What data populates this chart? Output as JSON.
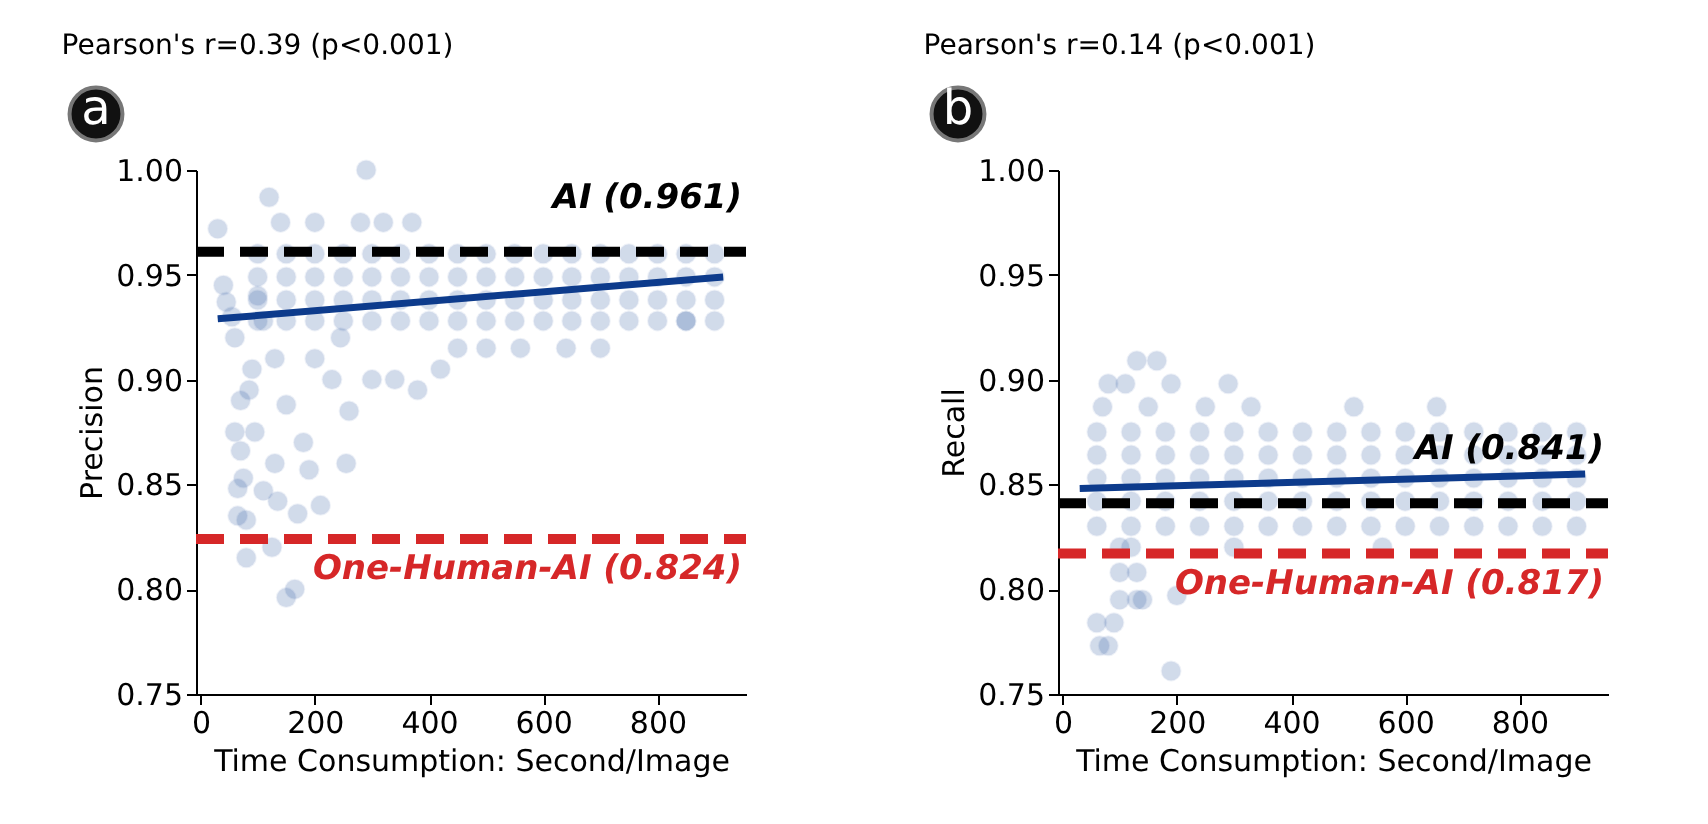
{
  "chart_data": [
    {
      "type": "scatter",
      "title": "Pearson's r=0.39 (p<0.001)",
      "xlabel": "Time Consumption: Second/Image",
      "ylabel": "Precision",
      "annotations": [
        "a"
      ],
      "xlim": [
        -8,
        955
      ],
      "xticks": [
        0,
        200,
        400,
        600,
        800
      ],
      "ylim": [
        0.75,
        1.0
      ],
      "yticks": [
        {
          "value": 0.75,
          "label": "0.75"
        },
        {
          "value": 0.8,
          "label": "0.80"
        },
        {
          "value": 0.85,
          "label": "0.85"
        },
        {
          "value": 0.9,
          "label": "0.90"
        },
        {
          "value": 0.95,
          "label": "0.95"
        },
        {
          "value": 1.0,
          "label": "1.00"
        }
      ],
      "grid": false,
      "marker": "circle",
      "ref_lines": [
        {
          "axis": "y",
          "value": 0.961,
          "label": "AI (0.961)",
          "color": "#000000",
          "line_style": "dashed"
        },
        {
          "axis": "y",
          "value": 0.824,
          "label": "One-Human-AI (0.824)",
          "color": "#d62728",
          "line_style": "dashed"
        }
      ],
      "series": [
        {
          "color": "#1f4e9c",
          "x": [
            30,
            40,
            45,
            55,
            60,
            60,
            65,
            65,
            70,
            70,
            75,
            80,
            80,
            85,
            90,
            95,
            100,
            110,
            110,
            120,
            125,
            130,
            130,
            135,
            140,
            150,
            150,
            165,
            170,
            180,
            190,
            200,
            200,
            210,
            230,
            245,
            255,
            260,
            280,
            290,
            300,
            320,
            340,
            370,
            380,
            420,
            450,
            500,
            560,
            640,
            700,
            850,
            100,
            150,
            200,
            250,
            300,
            350,
            400,
            450,
            500,
            550,
            600,
            650,
            700,
            750,
            800,
            850,
            900,
            100,
            150,
            200,
            250,
            300,
            350,
            400,
            450,
            500,
            550,
            600,
            650,
            700,
            750,
            800,
            850,
            900,
            100,
            150,
            200,
            250,
            300,
            350,
            400,
            450,
            500,
            550,
            600,
            650,
            700,
            750,
            800,
            850,
            900,
            100,
            150,
            200,
            250,
            300,
            350,
            400,
            450,
            500,
            550,
            600,
            650,
            700,
            750,
            800,
            850,
            900
          ],
          "values": [
            0.972,
            0.945,
            0.937,
            0.93,
            0.92,
            0.875,
            0.835,
            0.848,
            0.89,
            0.866,
            0.853,
            0.815,
            0.833,
            0.895,
            0.905,
            0.875,
            0.94,
            0.928,
            0.847,
            0.987,
            0.82,
            0.86,
            0.91,
            0.842,
            0.975,
            0.796,
            0.888,
            0.8,
            0.836,
            0.87,
            0.857,
            0.975,
            0.91,
            0.84,
            0.9,
            0.92,
            0.86,
            0.885,
            0.975,
            1.0,
            0.9,
            0.975,
            0.9,
            0.975,
            0.895,
            0.905,
            0.915,
            0.915,
            0.915,
            0.915,
            0.915,
            0.928,
            0.928,
            0.928,
            0.928,
            0.928,
            0.928,
            0.928,
            0.928,
            0.928,
            0.928,
            0.928,
            0.928,
            0.928,
            0.928,
            0.928,
            0.928,
            0.928,
            0.928,
            0.938,
            0.938,
            0.938,
            0.938,
            0.938,
            0.938,
            0.938,
            0.938,
            0.938,
            0.938,
            0.938,
            0.938,
            0.938,
            0.938,
            0.938,
            0.938,
            0.938,
            0.949,
            0.949,
            0.949,
            0.949,
            0.949,
            0.949,
            0.949,
            0.949,
            0.949,
            0.949,
            0.949,
            0.949,
            0.949,
            0.949,
            0.949,
            0.949,
            0.949,
            0.96,
            0.96,
            0.96,
            0.96,
            0.96,
            0.96,
            0.96,
            0.96,
            0.96,
            0.96,
            0.96,
            0.96,
            0.96,
            0.96,
            0.96,
            0.96,
            0.96
          ]
        },
        {
          "type": "line",
          "marker": "none",
          "color": "#0d3b8c",
          "x": [
            30,
            915
          ],
          "values": [
            0.929,
            0.949
          ]
        }
      ]
    },
    {
      "type": "scatter",
      "title": "Pearson's r=0.14 (p<0.001)",
      "xlabel": "Time Consumption: Second/Image",
      "ylabel": "Recall",
      "annotations": [
        "b"
      ],
      "xlim": [
        -8,
        955
      ],
      "xticks": [
        0,
        200,
        400,
        600,
        800
      ],
      "ylim": [
        0.75,
        1.0
      ],
      "yticks": [
        {
          "value": 0.75,
          "label": "0.75"
        },
        {
          "value": 0.8,
          "label": "0.80"
        },
        {
          "value": 0.85,
          "label": "0.85"
        },
        {
          "value": 0.9,
          "label": "0.90"
        },
        {
          "value": 0.95,
          "label": "0.95"
        },
        {
          "value": 1.0,
          "label": "1.00"
        }
      ],
      "grid": false,
      "marker": "circle",
      "ref_lines": [
        {
          "axis": "y",
          "value": 0.841,
          "label": "AI (0.841)",
          "color": "#000000",
          "line_style": "dashed"
        },
        {
          "axis": "y",
          "value": 0.817,
          "label": "One-Human-AI (0.817)",
          "color": "#d62728",
          "line_style": "dashed"
        }
      ],
      "series": [
        {
          "color": "#1f4e9c",
          "x": [
            60,
            65,
            80,
            90,
            100,
            130,
            140,
            190,
            80,
            110,
            130,
            165,
            190,
            290,
            100,
            130,
            200,
            510,
            655,
            70,
            150,
            250,
            330,
            120,
            300,
            560,
            100,
            60,
            120,
            180,
            240,
            300,
            360,
            420,
            480,
            540,
            600,
            660,
            720,
            780,
            840,
            900,
            60,
            120,
            180,
            240,
            300,
            360,
            420,
            480,
            540,
            600,
            660,
            720,
            780,
            840,
            900,
            60,
            120,
            180,
            240,
            300,
            360,
            420,
            480,
            540,
            600,
            660,
            720,
            780,
            840,
            900,
            60,
            120,
            180,
            240,
            300,
            360,
            420,
            480,
            540,
            600,
            660,
            720,
            780,
            840,
            900,
            60,
            120,
            180,
            240,
            300,
            360,
            420,
            480,
            540,
            600,
            660,
            720,
            780,
            840,
            900
          ],
          "values": [
            0.784,
            0.773,
            0.773,
            0.784,
            0.795,
            0.795,
            0.795,
            0.761,
            0.898,
            0.898,
            0.909,
            0.909,
            0.898,
            0.898,
            0.808,
            0.808,
            0.797,
            0.887,
            0.887,
            0.887,
            0.887,
            0.887,
            0.887,
            0.82,
            0.82,
            0.82,
            0.82,
            0.83,
            0.83,
            0.83,
            0.83,
            0.83,
            0.83,
            0.83,
            0.83,
            0.83,
            0.83,
            0.83,
            0.83,
            0.83,
            0.83,
            0.83,
            0.842,
            0.842,
            0.842,
            0.842,
            0.842,
            0.842,
            0.842,
            0.842,
            0.842,
            0.842,
            0.842,
            0.842,
            0.842,
            0.842,
            0.842,
            0.853,
            0.853,
            0.853,
            0.853,
            0.853,
            0.853,
            0.853,
            0.853,
            0.853,
            0.853,
            0.853,
            0.853,
            0.853,
            0.853,
            0.853,
            0.864,
            0.864,
            0.864,
            0.864,
            0.864,
            0.864,
            0.864,
            0.864,
            0.864,
            0.864,
            0.864,
            0.864,
            0.864,
            0.864,
            0.864,
            0.875,
            0.875,
            0.875,
            0.875,
            0.875,
            0.875,
            0.875,
            0.875,
            0.875,
            0.875,
            0.875,
            0.875,
            0.875,
            0.875,
            0.875
          ]
        },
        {
          "type": "line",
          "marker": "none",
          "color": "#0d3b8c",
          "x": [
            30,
            915
          ],
          "values": [
            0.848,
            0.855
          ]
        }
      ]
    }
  ]
}
